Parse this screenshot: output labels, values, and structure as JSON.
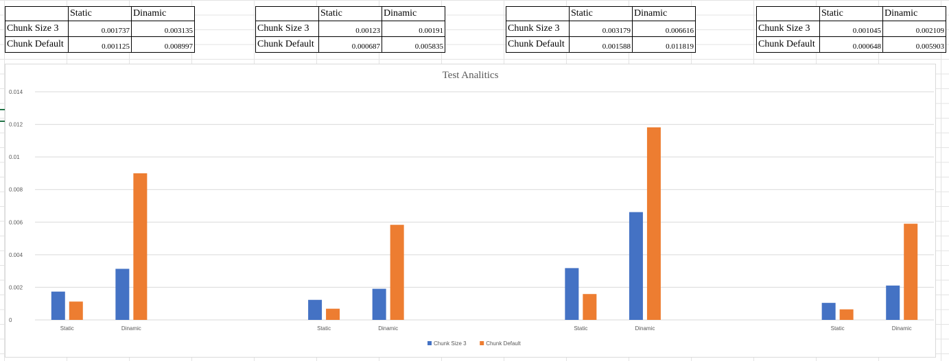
{
  "tables": [
    {
      "headers": [
        "",
        "Static",
        "Dinamic"
      ],
      "rows": [
        {
          "label": "Chunk Size 3",
          "static": "0.001737",
          "dinamic": "0.003135"
        },
        {
          "label": "Chunk Default",
          "static": "0.001125",
          "dinamic": "0.008997"
        }
      ]
    },
    {
      "headers": [
        "",
        "Static",
        "Dinamic"
      ],
      "rows": [
        {
          "label": "Chunk Size 3",
          "static": "0.00123",
          "dinamic": "0.00191"
        },
        {
          "label": "Chunk Default",
          "static": "0.000687",
          "dinamic": "0.005835"
        }
      ]
    },
    {
      "headers": [
        "",
        "Static",
        "Dinamic"
      ],
      "rows": [
        {
          "label": "Chunk Size 3",
          "static": "0.003179",
          "dinamic": "0.006616"
        },
        {
          "label": "Chunk Default",
          "static": "0.001588",
          "dinamic": "0.011819"
        }
      ]
    },
    {
      "headers": [
        "",
        "Static",
        "Dinamic"
      ],
      "rows": [
        {
          "label": "Chunk Size 3",
          "static": "0.001045",
          "dinamic": "0.002109"
        },
        {
          "label": "Chunk Default",
          "static": "0.000648",
          "dinamic": "0.005903"
        }
      ]
    }
  ],
  "chart_data": {
    "type": "bar",
    "title": "Test Analitics",
    "categories": [
      "Static",
      "Dinamic",
      "",
      "",
      "Static",
      "Dinamic",
      "",
      "",
      "Static",
      "Dinamic",
      "",
      "",
      "Static",
      "Dinamic"
    ],
    "series": [
      {
        "name": "Chunk Size 3",
        "color": "#4472c4",
        "values": [
          0.001737,
          0.003135,
          null,
          null,
          0.00123,
          0.00191,
          null,
          null,
          0.003179,
          0.006616,
          null,
          null,
          0.001045,
          0.002109
        ]
      },
      {
        "name": "Chunk Default",
        "color": "#ed7d31",
        "values": [
          0.001125,
          0.008997,
          null,
          null,
          0.000687,
          0.005835,
          null,
          null,
          0.001588,
          0.011819,
          null,
          null,
          0.000648,
          0.005903
        ]
      }
    ],
    "yticks": [
      "0",
      "0.002",
      "0.004",
      "0.006",
      "0.008",
      "0.01",
      "0.012",
      "0.014"
    ],
    "ylim": [
      0,
      0.014
    ],
    "grid": true,
    "legend_position": "bottom"
  }
}
